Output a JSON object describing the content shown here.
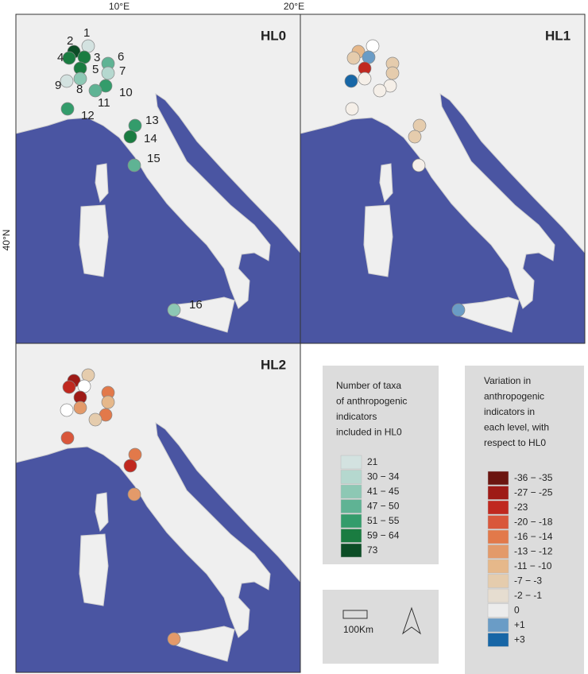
{
  "axes": {
    "lon_labels": [
      "10°E",
      "20°E"
    ],
    "lat_label": "40°N"
  },
  "site_numbers": [
    "1",
    "2",
    "3",
    "4",
    "5",
    "6",
    "7",
    "8",
    "9",
    "10",
    "11",
    "12",
    "13",
    "14",
    "15",
    "16"
  ],
  "panels": [
    {
      "label": "HL0",
      "site_colors": [
        "#d3e2e0",
        "#0c4d26",
        "#1a7c41",
        "#1a7c41",
        "#1a7c41",
        "#5fb394",
        "#b5d8cf",
        "#8dc8b4",
        "#d3e2e0",
        "#339c6b",
        "#5fb394",
        "#339c6b",
        "#339c6b",
        "#1a7c41",
        "#5fb394",
        "#8dc8b4"
      ]
    },
    {
      "label": "HL1",
      "site_colors": [
        "#ffffff",
        "#e6b88a",
        "#6a9cc6",
        "#e5ccad",
        "#c0281f",
        "#e5ccad",
        "#e5ccad",
        "#f5efe8",
        "#1766a6",
        "#f5efe8",
        "#f5efe8",
        "#f5efe8",
        "#e5ccad",
        "#e5ccad",
        "#f5efe8",
        "#6a9cc6"
      ]
    },
    {
      "label": "HL2",
      "site_colors": [
        "#e5ccad",
        "#9e1a16",
        "#ffffff",
        "#c0281f",
        "#9e1a16",
        "#e2794a",
        "#e6b88a",
        "#e39a6a",
        "#ffffff",
        "#e2794a",
        "#e5ccad",
        "#d9573b",
        "#e2794a",
        "#c0281f",
        "#e39a6a",
        "#e39a6a"
      ]
    }
  ],
  "legend_taxa": {
    "title_lines": [
      "Number of taxa",
      "of anthropogenic",
      "indicators",
      "included in HL0"
    ],
    "classes": [
      {
        "label": "21",
        "color": "#d3e2e0"
      },
      {
        "label": "30 − 34",
        "color": "#b5d8cf"
      },
      {
        "label": "41 − 45",
        "color": "#8dc8b4"
      },
      {
        "label": "47 − 50",
        "color": "#5fb394"
      },
      {
        "label": "51 − 55",
        "color": "#339c6b"
      },
      {
        "label": "59 − 64",
        "color": "#1a7c41"
      },
      {
        "label": "73",
        "color": "#0c4d26"
      }
    ]
  },
  "legend_variation": {
    "title_lines": [
      "Variation in",
      "anthropogenic",
      "indicators in",
      "each level, with",
      "respect to HL0"
    ],
    "classes": [
      {
        "label": "-36 − -35",
        "color": "#6b1510"
      },
      {
        "label": "-27 − -25",
        "color": "#9e1a16"
      },
      {
        "label": "-23",
        "color": "#c0281f"
      },
      {
        "label": "-20 − -18",
        "color": "#d9573b"
      },
      {
        "label": "-16 − -14",
        "color": "#e2794a"
      },
      {
        "label": "-13 − -12",
        "color": "#e39a6a"
      },
      {
        "label": "-11 − -10",
        "color": "#e6b88a"
      },
      {
        "label": "-7 − -3",
        "color": "#e5ccad"
      },
      {
        "label": "-2 − -1",
        "color": "#e6ddd0"
      },
      {
        "label": "0",
        "color": "#ececec"
      },
      {
        "label": "+1",
        "color": "#6a9cc6"
      },
      {
        "label": "+3",
        "color": "#1766a6"
      }
    ]
  },
  "scale": {
    "label": "100Km"
  }
}
